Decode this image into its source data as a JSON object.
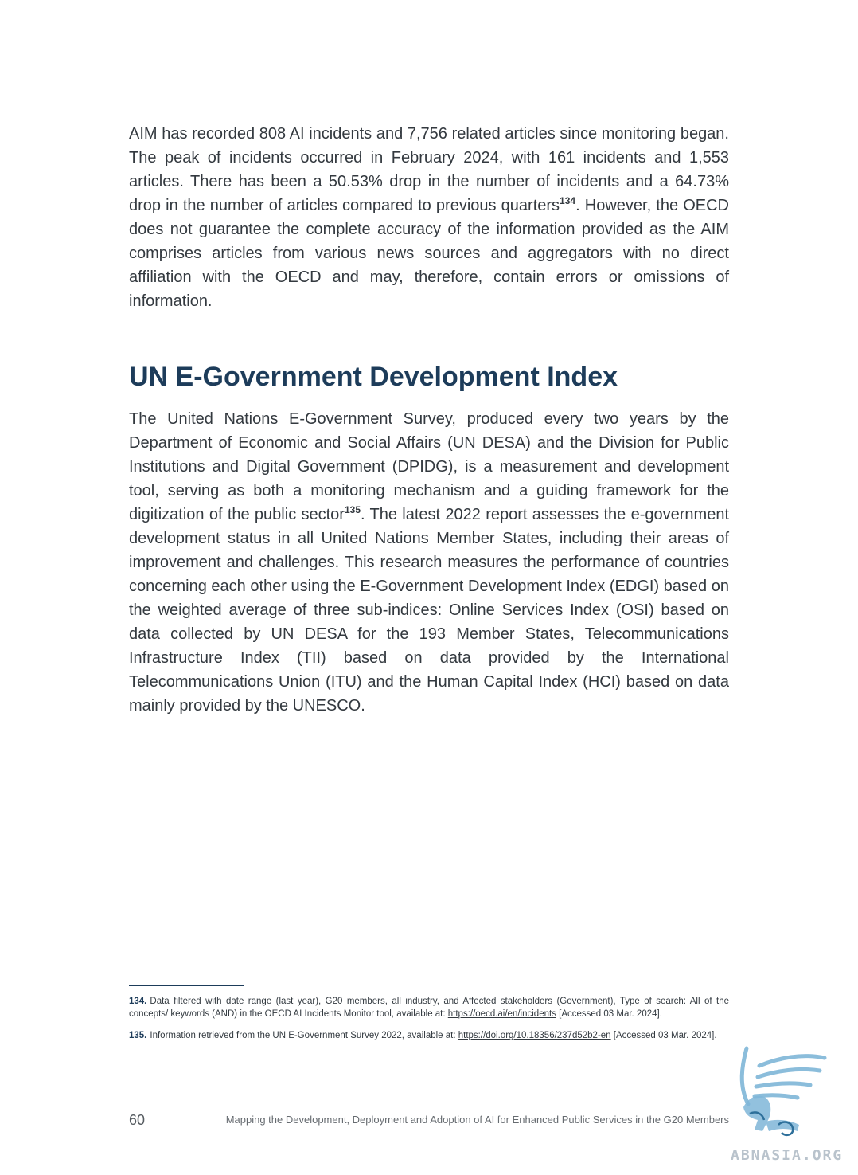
{
  "body": {
    "para1": {
      "before_sup": "AIM has recorded 808 AI incidents and 7,756 related articles since monitoring began. The peak of incidents occurred in February 2024, with 161 incidents and 1,553 articles. There has been a 50.53% drop in the number of incidents and a 64.73% drop in the number of articles compared to previous quarters",
      "sup": "134",
      "after_sup": ". However, the OECD does not guarantee the complete accuracy of the information provided as the AIM comprises articles from various news sources and aggregators with no direct affiliation with the OECD and may, therefore, contain errors or omissions of information."
    },
    "heading": "UN E-Government Development Index",
    "para2": {
      "before_sup": "The United Nations E-Government Survey, produced every two years by the Department of Economic and Social Affairs (UN DESA) and the Division for Public Institutions and Digital Government (DPIDG), is a measurement and development tool, serving as both a monitoring mechanism and a guiding framework for the digitization of the public sector",
      "sup": "135",
      "after_sup": ". The latest 2022 report assesses the e-government development status in all United Nations Member States, including their areas of improvement and challenges. This research measures the performance of countries concerning each other using the E-Government Development Index (EDGI) based on the weighted average of three sub-indices: Online Services Index (OSI) based on data collected by UN DESA for the 193 Member States, Telecommunications Infrastructure Index (TII) based on data provided by the International Telecommunications Union (ITU) and the Human Capital Index (HCI) based on data mainly provided by the UNESCO."
    }
  },
  "footnotes": [
    {
      "number": "134.",
      "text": "Data filtered with date range (last year), G20 members, all industry, and Affected stakeholders (Government), Type of search: All of the concepts/ keywords (AND) in the OECD AI Incidents Monitor tool, available at: ",
      "link": "https://oecd.ai/en/incidents",
      "after": " [Accessed 03 Mar. 2024]."
    },
    {
      "number": "135.",
      "text": "Information retrieved from the UN E-Government Survey 2022, available at: ",
      "link": "https://doi.org/10.18356/237d52b2-en",
      "after": " [Accessed 03 Mar. 2024]."
    }
  ],
  "footer": {
    "page_number": "60",
    "title": "Mapping the Development, Deployment and Adoption of AI for Enhanced Public Services in the G20 Members"
  },
  "watermark": {
    "text": "ABNASIA.ORG",
    "icon": "griffin-logo-icon",
    "color": "#7fb6d8"
  }
}
